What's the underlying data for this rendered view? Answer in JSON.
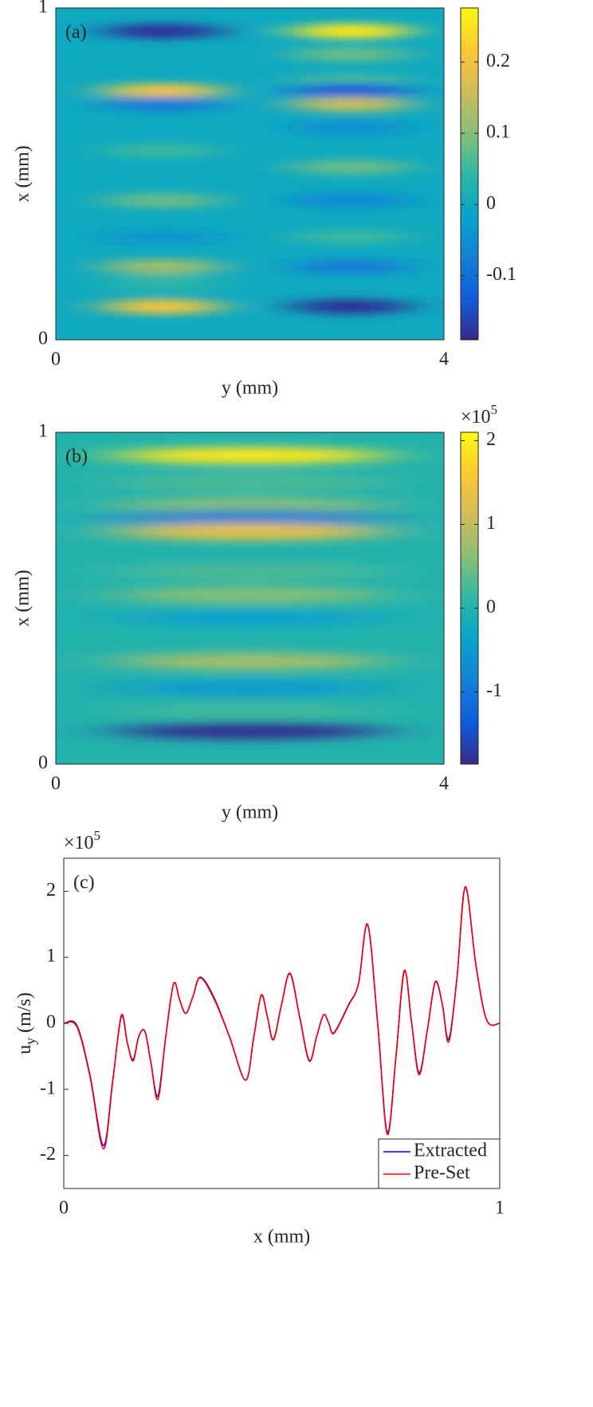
{
  "chart_data": [
    {
      "type": "heatmap",
      "label": "(a)",
      "xlabel": "y (mm)",
      "ylabel": "x (mm)",
      "xlim": [
        0,
        4
      ],
      "xticks": [
        0,
        4
      ],
      "ylim": [
        0,
        1
      ],
      "yticks": [
        0,
        1
      ],
      "clim": [
        -0.19,
        0.276
      ],
      "cticks": [
        -0.1,
        0,
        0.1,
        0.2
      ],
      "features": [
        {
          "y": 1.1,
          "x": 0.93,
          "value": -0.18
        },
        {
          "y": 1.1,
          "x": 0.75,
          "value": 0.2
        },
        {
          "y": 1.1,
          "x": 0.71,
          "value": -0.08
        },
        {
          "y": 1.1,
          "x": 0.57,
          "value": 0.05
        },
        {
          "y": 1.1,
          "x": 0.42,
          "value": 0.08
        },
        {
          "y": 1.1,
          "x": 0.31,
          "value": -0.04
        },
        {
          "y": 1.1,
          "x": 0.22,
          "value": 0.12
        },
        {
          "y": 1.1,
          "x": 0.17,
          "value": 0.04
        },
        {
          "y": 1.1,
          "x": 0.1,
          "value": 0.2
        },
        {
          "y": 3.04,
          "x": 0.93,
          "value": 0.25
        },
        {
          "y": 3.04,
          "x": 0.86,
          "value": 0.08
        },
        {
          "y": 3.04,
          "x": 0.78,
          "value": 0.06
        },
        {
          "y": 3.04,
          "x": 0.75,
          "value": -0.13
        },
        {
          "y": 3.04,
          "x": 0.71,
          "value": 0.15
        },
        {
          "y": 3.04,
          "x": 0.64,
          "value": -0.05
        },
        {
          "y": 3.04,
          "x": 0.52,
          "value": 0.08
        },
        {
          "y": 3.04,
          "x": 0.42,
          "value": -0.06
        },
        {
          "y": 3.04,
          "x": 0.31,
          "value": 0.05
        },
        {
          "y": 3.04,
          "x": 0.22,
          "value": -0.08
        },
        {
          "y": 3.04,
          "x": 0.1,
          "value": -0.18
        }
      ]
    },
    {
      "type": "heatmap",
      "label": "(b)",
      "xlabel": "y (mm)",
      "ylabel": "x (mm)",
      "xlim": [
        0,
        4
      ],
      "xticks": [
        0,
        4
      ],
      "ylim": [
        0,
        1
      ],
      "yticks": [
        0,
        1
      ],
      "clim": [
        -1.86,
        2.1
      ],
      "cticks": [
        -1,
        0,
        1,
        2
      ],
      "multiplier": "×10",
      "multiplier_exponent": "5",
      "features": [
        {
          "y": 2,
          "x": 0.93,
          "value": 1.9
        },
        {
          "y": 2,
          "x": 0.85,
          "value": 0.3
        },
        {
          "y": 2,
          "x": 0.78,
          "value": 0.6
        },
        {
          "y": 2,
          "x": 0.74,
          "value": -0.9
        },
        {
          "y": 2,
          "x": 0.7,
          "value": 1.3
        },
        {
          "y": 2,
          "x": 0.58,
          "value": 0.3
        },
        {
          "y": 2,
          "x": 0.51,
          "value": 0.6
        },
        {
          "y": 2,
          "x": 0.44,
          "value": -0.4
        },
        {
          "y": 2,
          "x": 0.31,
          "value": 0.8
        },
        {
          "y": 2,
          "x": 0.23,
          "value": -0.5
        },
        {
          "y": 2,
          "x": 0.16,
          "value": 0.2
        },
        {
          "y": 2,
          "x": 0.1,
          "value": -1.8
        }
      ]
    },
    {
      "type": "line",
      "label": "(c)",
      "xlabel": "x (mm)",
      "ylabel": "u",
      "ylabel_subscript": "y",
      "ylabel_unit": "(m/s)",
      "multiplier": "×10",
      "multiplier_exponent": "5",
      "xlim": [
        0,
        1
      ],
      "xticks": [
        0,
        1
      ],
      "ylim": [
        -2.5,
        2.5
      ],
      "yticks": [
        -2,
        -1,
        0,
        1,
        2
      ],
      "legend": "lower right",
      "x": [
        0,
        0.03,
        0.06,
        0.091,
        0.112,
        0.132,
        0.146,
        0.159,
        0.172,
        0.186,
        0.2,
        0.216,
        0.234,
        0.252,
        0.266,
        0.28,
        0.296,
        0.313,
        0.344,
        0.38,
        0.417,
        0.436,
        0.453,
        0.467,
        0.481,
        0.5,
        0.519,
        0.541,
        0.563,
        0.58,
        0.596,
        0.608,
        0.62,
        0.653,
        0.676,
        0.697,
        0.72,
        0.742,
        0.762,
        0.781,
        0.798,
        0.815,
        0.834,
        0.852,
        0.868,
        0.883,
        0.902,
        0.921,
        0.945,
        0.97,
        1
      ],
      "series": [
        {
          "name": "Extracted",
          "color": "#0000ff",
          "values": [
            0,
            -0.03,
            -0.78,
            -1.85,
            -0.88,
            0.1,
            -0.3,
            -0.55,
            -0.2,
            -0.12,
            -0.6,
            -1.1,
            -0.2,
            0.6,
            0.35,
            0.15,
            0.4,
            0.7,
            0.4,
            -0.2,
            -0.86,
            -0.2,
            0.42,
            0.1,
            -0.24,
            0.3,
            0.75,
            0.1,
            -0.56,
            -0.2,
            0.13,
            0,
            -0.14,
            0.28,
            0.6,
            1.49,
            0,
            -1.65,
            -0.5,
            0.79,
            0,
            -0.75,
            -0.1,
            0.62,
            0.3,
            -0.24,
            0.7,
            2.06,
            0.9,
            0.05,
            0
          ]
        },
        {
          "name": "Pre-Set",
          "color": "#ff0000",
          "values": [
            0,
            -0.05,
            -0.8,
            -1.9,
            -0.9,
            0.12,
            -0.3,
            -0.57,
            -0.2,
            -0.12,
            -0.6,
            -1.15,
            -0.2,
            0.6,
            0.35,
            0.15,
            0.4,
            0.69,
            0.38,
            -0.2,
            -0.86,
            -0.2,
            0.43,
            0.1,
            -0.25,
            0.3,
            0.76,
            0.1,
            -0.57,
            -0.2,
            0.13,
            0,
            -0.15,
            0.27,
            0.6,
            1.5,
            0,
            -1.68,
            -0.5,
            0.8,
            0,
            -0.78,
            -0.1,
            0.63,
            0.3,
            -0.28,
            0.7,
            2.07,
            0.9,
            0.05,
            0
          ]
        }
      ]
    }
  ]
}
